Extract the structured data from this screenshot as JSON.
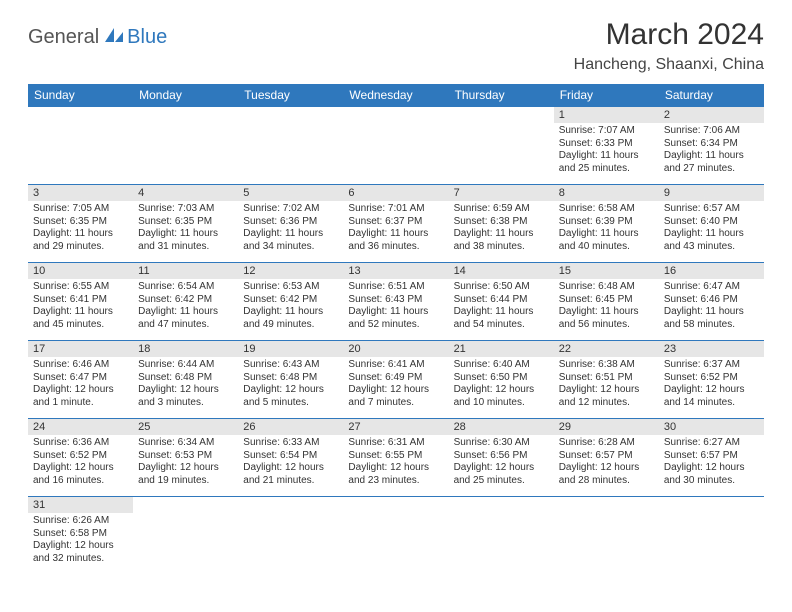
{
  "logo": {
    "text1": "General",
    "text2": "Blue"
  },
  "title": "March 2024",
  "location": "Hancheng, Shaanxi, China",
  "colors": {
    "header_bg": "#2f78bd",
    "header_text": "#ffffff",
    "daynum_bg": "#e6e6e6",
    "border": "#2f78bd",
    "text": "#333333",
    "page_bg": "#ffffff"
  },
  "day_labels": [
    "Sunday",
    "Monday",
    "Tuesday",
    "Wednesday",
    "Thursday",
    "Friday",
    "Saturday"
  ],
  "weeks": [
    [
      null,
      null,
      null,
      null,
      null,
      {
        "n": "1",
        "sunrise": "Sunrise: 7:07 AM",
        "sunset": "Sunset: 6:33 PM",
        "day1": "Daylight: 11 hours",
        "day2": "and 25 minutes."
      },
      {
        "n": "2",
        "sunrise": "Sunrise: 7:06 AM",
        "sunset": "Sunset: 6:34 PM",
        "day1": "Daylight: 11 hours",
        "day2": "and 27 minutes."
      }
    ],
    [
      {
        "n": "3",
        "sunrise": "Sunrise: 7:05 AM",
        "sunset": "Sunset: 6:35 PM",
        "day1": "Daylight: 11 hours",
        "day2": "and 29 minutes."
      },
      {
        "n": "4",
        "sunrise": "Sunrise: 7:03 AM",
        "sunset": "Sunset: 6:35 PM",
        "day1": "Daylight: 11 hours",
        "day2": "and 31 minutes."
      },
      {
        "n": "5",
        "sunrise": "Sunrise: 7:02 AM",
        "sunset": "Sunset: 6:36 PM",
        "day1": "Daylight: 11 hours",
        "day2": "and 34 minutes."
      },
      {
        "n": "6",
        "sunrise": "Sunrise: 7:01 AM",
        "sunset": "Sunset: 6:37 PM",
        "day1": "Daylight: 11 hours",
        "day2": "and 36 minutes."
      },
      {
        "n": "7",
        "sunrise": "Sunrise: 6:59 AM",
        "sunset": "Sunset: 6:38 PM",
        "day1": "Daylight: 11 hours",
        "day2": "and 38 minutes."
      },
      {
        "n": "8",
        "sunrise": "Sunrise: 6:58 AM",
        "sunset": "Sunset: 6:39 PM",
        "day1": "Daylight: 11 hours",
        "day2": "and 40 minutes."
      },
      {
        "n": "9",
        "sunrise": "Sunrise: 6:57 AM",
        "sunset": "Sunset: 6:40 PM",
        "day1": "Daylight: 11 hours",
        "day2": "and 43 minutes."
      }
    ],
    [
      {
        "n": "10",
        "sunrise": "Sunrise: 6:55 AM",
        "sunset": "Sunset: 6:41 PM",
        "day1": "Daylight: 11 hours",
        "day2": "and 45 minutes."
      },
      {
        "n": "11",
        "sunrise": "Sunrise: 6:54 AM",
        "sunset": "Sunset: 6:42 PM",
        "day1": "Daylight: 11 hours",
        "day2": "and 47 minutes."
      },
      {
        "n": "12",
        "sunrise": "Sunrise: 6:53 AM",
        "sunset": "Sunset: 6:42 PM",
        "day1": "Daylight: 11 hours",
        "day2": "and 49 minutes."
      },
      {
        "n": "13",
        "sunrise": "Sunrise: 6:51 AM",
        "sunset": "Sunset: 6:43 PM",
        "day1": "Daylight: 11 hours",
        "day2": "and 52 minutes."
      },
      {
        "n": "14",
        "sunrise": "Sunrise: 6:50 AM",
        "sunset": "Sunset: 6:44 PM",
        "day1": "Daylight: 11 hours",
        "day2": "and 54 minutes."
      },
      {
        "n": "15",
        "sunrise": "Sunrise: 6:48 AM",
        "sunset": "Sunset: 6:45 PM",
        "day1": "Daylight: 11 hours",
        "day2": "and 56 minutes."
      },
      {
        "n": "16",
        "sunrise": "Sunrise: 6:47 AM",
        "sunset": "Sunset: 6:46 PM",
        "day1": "Daylight: 11 hours",
        "day2": "and 58 minutes."
      }
    ],
    [
      {
        "n": "17",
        "sunrise": "Sunrise: 6:46 AM",
        "sunset": "Sunset: 6:47 PM",
        "day1": "Daylight: 12 hours",
        "day2": "and 1 minute."
      },
      {
        "n": "18",
        "sunrise": "Sunrise: 6:44 AM",
        "sunset": "Sunset: 6:48 PM",
        "day1": "Daylight: 12 hours",
        "day2": "and 3 minutes."
      },
      {
        "n": "19",
        "sunrise": "Sunrise: 6:43 AM",
        "sunset": "Sunset: 6:48 PM",
        "day1": "Daylight: 12 hours",
        "day2": "and 5 minutes."
      },
      {
        "n": "20",
        "sunrise": "Sunrise: 6:41 AM",
        "sunset": "Sunset: 6:49 PM",
        "day1": "Daylight: 12 hours",
        "day2": "and 7 minutes."
      },
      {
        "n": "21",
        "sunrise": "Sunrise: 6:40 AM",
        "sunset": "Sunset: 6:50 PM",
        "day1": "Daylight: 12 hours",
        "day2": "and 10 minutes."
      },
      {
        "n": "22",
        "sunrise": "Sunrise: 6:38 AM",
        "sunset": "Sunset: 6:51 PM",
        "day1": "Daylight: 12 hours",
        "day2": "and 12 minutes."
      },
      {
        "n": "23",
        "sunrise": "Sunrise: 6:37 AM",
        "sunset": "Sunset: 6:52 PM",
        "day1": "Daylight: 12 hours",
        "day2": "and 14 minutes."
      }
    ],
    [
      {
        "n": "24",
        "sunrise": "Sunrise: 6:36 AM",
        "sunset": "Sunset: 6:52 PM",
        "day1": "Daylight: 12 hours",
        "day2": "and 16 minutes."
      },
      {
        "n": "25",
        "sunrise": "Sunrise: 6:34 AM",
        "sunset": "Sunset: 6:53 PM",
        "day1": "Daylight: 12 hours",
        "day2": "and 19 minutes."
      },
      {
        "n": "26",
        "sunrise": "Sunrise: 6:33 AM",
        "sunset": "Sunset: 6:54 PM",
        "day1": "Daylight: 12 hours",
        "day2": "and 21 minutes."
      },
      {
        "n": "27",
        "sunrise": "Sunrise: 6:31 AM",
        "sunset": "Sunset: 6:55 PM",
        "day1": "Daylight: 12 hours",
        "day2": "and 23 minutes."
      },
      {
        "n": "28",
        "sunrise": "Sunrise: 6:30 AM",
        "sunset": "Sunset: 6:56 PM",
        "day1": "Daylight: 12 hours",
        "day2": "and 25 minutes."
      },
      {
        "n": "29",
        "sunrise": "Sunrise: 6:28 AM",
        "sunset": "Sunset: 6:57 PM",
        "day1": "Daylight: 12 hours",
        "day2": "and 28 minutes."
      },
      {
        "n": "30",
        "sunrise": "Sunrise: 6:27 AM",
        "sunset": "Sunset: 6:57 PM",
        "day1": "Daylight: 12 hours",
        "day2": "and 30 minutes."
      }
    ],
    [
      {
        "n": "31",
        "sunrise": "Sunrise: 6:26 AM",
        "sunset": "Sunset: 6:58 PM",
        "day1": "Daylight: 12 hours",
        "day2": "and 32 minutes."
      },
      null,
      null,
      null,
      null,
      null,
      null
    ]
  ]
}
